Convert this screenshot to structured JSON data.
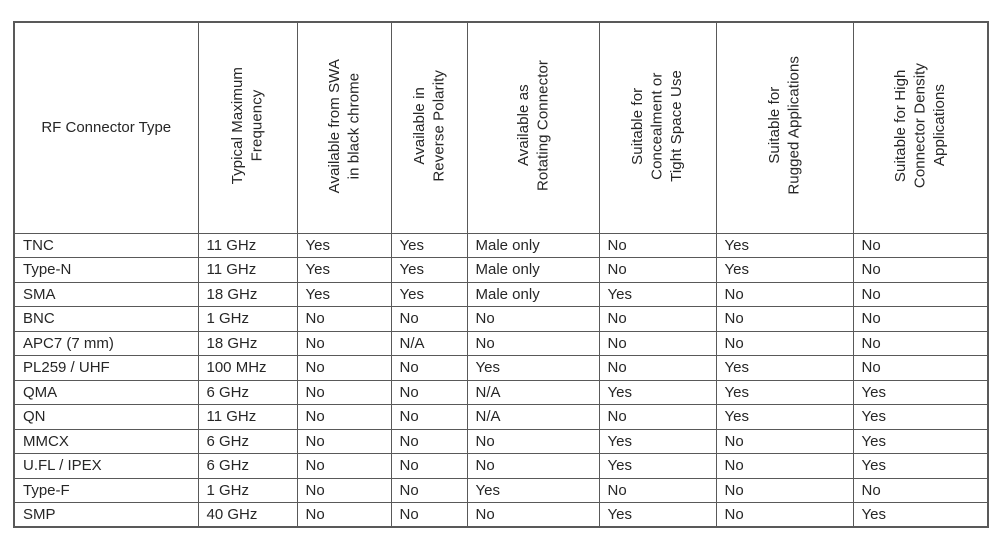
{
  "table": {
    "corner_header": "RF Connector Type",
    "column_headers": [
      "Typical Maximum\nFrequency",
      "Available from SWA\nin black chrome",
      "Available in\nReverse Polarity",
      "Available as\nRotating Connector",
      "Suitable for\nConcealment or\nTight Space Use",
      "Suitable for\nRugged Applications",
      "Suitable for High\nConnector Density\nApplications"
    ],
    "rows": [
      {
        "connector": "TNC",
        "values": [
          "11 GHz",
          "Yes",
          "Yes",
          "Male only",
          "No",
          "Yes",
          "No"
        ]
      },
      {
        "connector": "Type-N",
        "values": [
          "11 GHz",
          "Yes",
          "Yes",
          "Male only",
          "No",
          "Yes",
          "No"
        ]
      },
      {
        "connector": "SMA",
        "values": [
          "18 GHz",
          "Yes",
          "Yes",
          "Male only",
          "Yes",
          "No",
          "No"
        ]
      },
      {
        "connector": "BNC",
        "values": [
          "1 GHz",
          "No",
          "No",
          "No",
          "No",
          "No",
          "No"
        ]
      },
      {
        "connector": "APC7 (7 mm)",
        "values": [
          "18 GHz",
          "No",
          "N/A",
          "No",
          "No",
          "No",
          "No"
        ]
      },
      {
        "connector": "PL259 / UHF",
        "values": [
          "100 MHz",
          "No",
          "No",
          "Yes",
          "No",
          "Yes",
          "No"
        ]
      },
      {
        "connector": "QMA",
        "values": [
          "6 GHz",
          "No",
          "No",
          "N/A",
          "Yes",
          "Yes",
          "Yes"
        ]
      },
      {
        "connector": "QN",
        "values": [
          "11 GHz",
          "No",
          "No",
          "N/A",
          "No",
          "Yes",
          "Yes"
        ]
      },
      {
        "connector": "MMCX",
        "values": [
          "6 GHz",
          "No",
          "No",
          "No",
          "Yes",
          "No",
          "Yes"
        ]
      },
      {
        "connector": "U.FL / IPEX",
        "values": [
          "6 GHz",
          "No",
          "No",
          "No",
          "Yes",
          "No",
          "Yes"
        ]
      },
      {
        "connector": "Type-F",
        "values": [
          "1 GHz",
          "No",
          "No",
          "Yes",
          "No",
          "No",
          "No"
        ]
      },
      {
        "connector": "SMP",
        "values": [
          "40 GHz",
          "No",
          "No",
          "No",
          "Yes",
          "No",
          "Yes"
        ]
      }
    ],
    "colors": {
      "border": "#595959",
      "text": "#262626",
      "background": "#ffffff"
    }
  }
}
